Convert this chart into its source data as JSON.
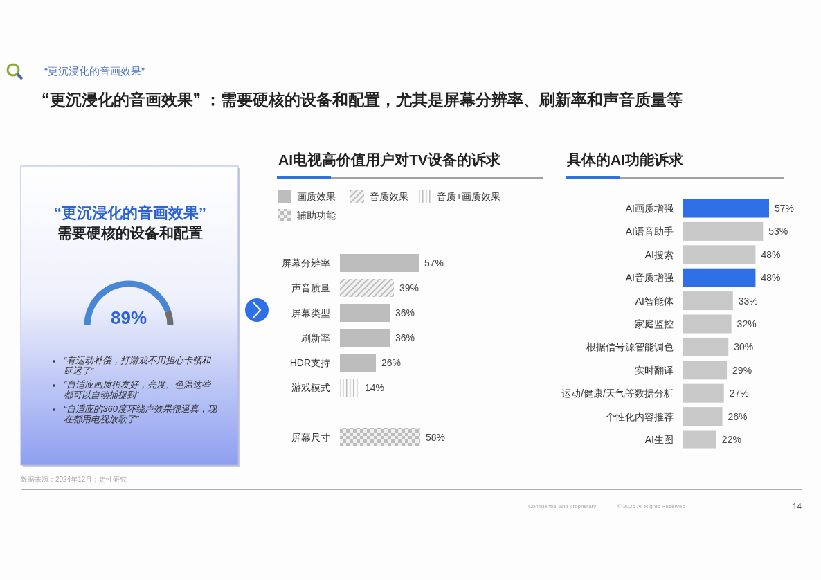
{
  "chart_data": [
    {
      "type": "other",
      "subtitle": "“更沉浸化的音画效果”",
      "title": "“更沉浸化的音画效果” ：需要硬核的设备和配置，尤其是屏幕分辨率、刷新率和声音质量等",
      "annotations": [
        "数据来源：2024年12月；定性研究",
        "Confidential and proprietary",
        "© 2025 All Rights Reserved",
        "14"
      ]
    },
    {
      "type": "donut",
      "title": "“更沉浸化的音画效果”",
      "subtitle": "需要硬核的设备和配置",
      "categories": [
        null,
        null
      ],
      "values": [
        89,
        11
      ],
      "colors": [
        "#4a86d6",
        "#6e6e6e"
      ],
      "value_labels": [
        "89%",
        null
      ],
      "annotations": [
        "“有运动补偿，打游戏不用担心卡顿和延迟了”",
        "“自适应画质很友好，亮度、色温这些都可以自动捕捉到”",
        "“自适应的360度环绕声效果很逼真，现在都用电视放歌了”"
      ]
    },
    {
      "type": "bar",
      "orientation": "horizontal",
      "title": "AI电视高价值用户对TV设备的诉求",
      "legend": "top",
      "categories": [
        "屏幕分辨率",
        "声音质量",
        "屏幕类型",
        "刷新率",
        "HDR支持",
        "游戏模式",
        null,
        "屏幕尺寸"
      ],
      "series": [
        {
          "name": "画质效果",
          "color": "#bdbdbd",
          "values": [
            57,
            null,
            36,
            36,
            26,
            null,
            null,
            null
          ],
          "value_labels": [
            "57%",
            null,
            "36%",
            "36%",
            "26%",
            null,
            null,
            null
          ]
        },
        {
          "name": "音质效果",
          "color": "#bdbdbd",
          "values": [
            null,
            39,
            null,
            null,
            null,
            null,
            null,
            null
          ],
          "value_labels": [
            null,
            "39%",
            null,
            null,
            null,
            null,
            null,
            null
          ]
        },
        {
          "name": "音质+画质效果",
          "color": "#bdbdbd",
          "values": [
            null,
            null,
            null,
            null,
            null,
            14,
            null,
            null
          ],
          "value_labels": [
            null,
            null,
            null,
            null,
            null,
            "14%",
            null,
            null
          ]
        },
        {
          "name": "辅助功能",
          "color": "#bdbdbd",
          "values": [
            null,
            null,
            null,
            null,
            null,
            null,
            null,
            58
          ],
          "value_labels": [
            null,
            null,
            null,
            null,
            null,
            null,
            null,
            "58%"
          ]
        }
      ]
    },
    {
      "type": "bar",
      "orientation": "horizontal",
      "title": "具体的AI功能诉求",
      "categories": [
        "AI画质增强",
        "AI语音助手",
        "AI搜索",
        "AI音质增强",
        "AI智能体",
        "家庭监控",
        "根据信号源智能调色",
        "实时翻译",
        "运动/健康/天气等数据分析",
        "个性化内容推荐",
        "AI生图"
      ],
      "values": [
        57,
        53,
        48,
        48,
        33,
        32,
        30,
        29,
        27,
        26,
        22
      ],
      "colors": [
        "#2f6fe8",
        "#c8c8c8",
        "#c8c8c8",
        "#2f6fe8",
        "#c8c8c8",
        "#c8c8c8",
        "#c8c8c8",
        "#c8c8c8",
        "#c8c8c8",
        "#c8c8c8",
        "#c8c8c8"
      ],
      "value_labels": [
        "57%",
        "53%",
        "48%",
        "48%",
        "33%",
        "32%",
        "30%",
        "29%",
        "27%",
        "26%",
        "22%"
      ]
    }
  ]
}
